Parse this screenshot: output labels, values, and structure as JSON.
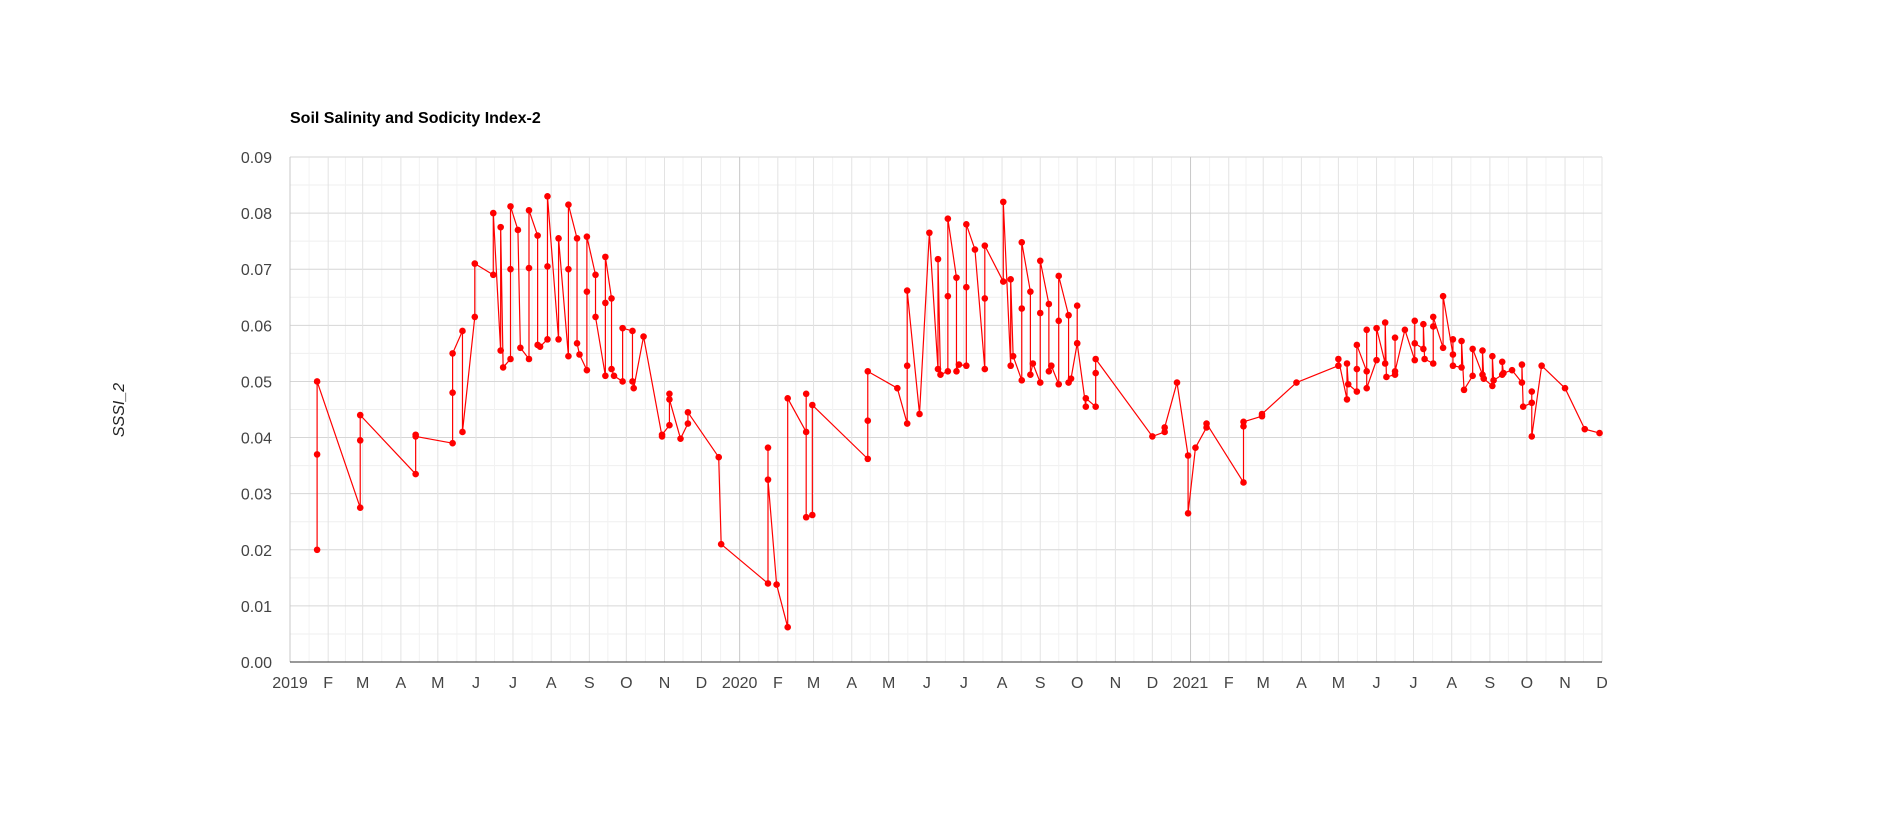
{
  "chart_data": {
    "type": "line",
    "title": "Soil Salinity and Sodicity Index-2",
    "xlabel": "",
    "ylabel": "SSSI_2",
    "ylim": [
      0,
      0.09
    ],
    "y_ticks": [
      "0.00",
      "0.01",
      "0.02",
      "0.03",
      "0.04",
      "0.05",
      "0.06",
      "0.07",
      "0.08",
      "0.09"
    ],
    "xlim": [
      "2019-01-01",
      "2021-12-01"
    ],
    "x_ticks": [
      {
        "date": "2019-01-01",
        "label": "2019"
      },
      {
        "date": "2019-02-01",
        "label": "F"
      },
      {
        "date": "2019-03-01",
        "label": "M"
      },
      {
        "date": "2019-04-01",
        "label": "A"
      },
      {
        "date": "2019-05-01",
        "label": "M"
      },
      {
        "date": "2019-06-01",
        "label": "J"
      },
      {
        "date": "2019-07-01",
        "label": "J"
      },
      {
        "date": "2019-08-01",
        "label": "A"
      },
      {
        "date": "2019-09-01",
        "label": "S"
      },
      {
        "date": "2019-10-01",
        "label": "O"
      },
      {
        "date": "2019-11-01",
        "label": "N"
      },
      {
        "date": "2019-12-01",
        "label": "D"
      },
      {
        "date": "2020-01-01",
        "label": "2020"
      },
      {
        "date": "2020-02-01",
        "label": "F"
      },
      {
        "date": "2020-03-01",
        "label": "M"
      },
      {
        "date": "2020-04-01",
        "label": "A"
      },
      {
        "date": "2020-05-01",
        "label": "M"
      },
      {
        "date": "2020-06-01",
        "label": "J"
      },
      {
        "date": "2020-07-01",
        "label": "J"
      },
      {
        "date": "2020-08-01",
        "label": "A"
      },
      {
        "date": "2020-09-01",
        "label": "S"
      },
      {
        "date": "2020-10-01",
        "label": "O"
      },
      {
        "date": "2020-11-01",
        "label": "N"
      },
      {
        "date": "2020-12-01",
        "label": "D"
      },
      {
        "date": "2021-01-01",
        "label": "2021"
      },
      {
        "date": "2021-02-01",
        "label": "F"
      },
      {
        "date": "2021-03-01",
        "label": "M"
      },
      {
        "date": "2021-04-01",
        "label": "A"
      },
      {
        "date": "2021-05-01",
        "label": "M"
      },
      {
        "date": "2021-06-01",
        "label": "J"
      },
      {
        "date": "2021-07-01",
        "label": "J"
      },
      {
        "date": "2021-08-01",
        "label": "A"
      },
      {
        "date": "2021-09-01",
        "label": "S"
      },
      {
        "date": "2021-10-01",
        "label": "O"
      },
      {
        "date": "2021-11-01",
        "label": "N"
      },
      {
        "date": "2021-12-01",
        "label": "D"
      }
    ],
    "grid": true,
    "legend": "none",
    "series": [
      {
        "color": "#ff0000",
        "points": [
          [
            "2019-01-23",
            0.037
          ],
          [
            "2019-01-23",
            0.02
          ],
          [
            "2019-01-23",
            0.05
          ],
          [
            "2019-02-27",
            0.0275
          ],
          [
            "2019-02-27",
            0.0395
          ],
          [
            "2019-02-27",
            0.044
          ],
          [
            "2019-04-13",
            0.0335
          ],
          [
            "2019-04-13",
            0.0405
          ],
          [
            "2019-04-13",
            0.0402
          ],
          [
            "2019-05-13",
            0.039
          ],
          [
            "2019-05-13",
            0.048
          ],
          [
            "2019-05-13",
            0.055
          ],
          [
            "2019-05-21",
            0.059
          ],
          [
            "2019-05-21",
            0.041
          ],
          [
            "2019-05-31",
            0.0615
          ],
          [
            "2019-05-31",
            0.071
          ],
          [
            "2019-06-15",
            0.069
          ],
          [
            "2019-06-15",
            0.08
          ],
          [
            "2019-06-21",
            0.0555
          ],
          [
            "2019-06-21",
            0.0775
          ],
          [
            "2019-06-23",
            0.0525
          ],
          [
            "2019-06-29",
            0.054
          ],
          [
            "2019-06-29",
            0.07
          ],
          [
            "2019-06-29",
            0.0812
          ],
          [
            "2019-07-05",
            0.077
          ],
          [
            "2019-07-07",
            0.056
          ],
          [
            "2019-07-14",
            0.054
          ],
          [
            "2019-07-14",
            0.0702
          ],
          [
            "2019-07-14",
            0.0805
          ],
          [
            "2019-07-21",
            0.076
          ],
          [
            "2019-07-21",
            0.0565
          ],
          [
            "2019-07-23",
            0.0562
          ],
          [
            "2019-07-29",
            0.0575
          ],
          [
            "2019-07-29",
            0.0705
          ],
          [
            "2019-07-29",
            0.083
          ],
          [
            "2019-08-07",
            0.0575
          ],
          [
            "2019-08-07",
            0.0755
          ],
          [
            "2019-08-15",
            0.0545
          ],
          [
            "2019-08-15",
            0.07
          ],
          [
            "2019-08-15",
            0.0815
          ],
          [
            "2019-08-22",
            0.0755
          ],
          [
            "2019-08-22",
            0.0568
          ],
          [
            "2019-08-24",
            0.0548
          ],
          [
            "2019-08-30",
            0.052
          ],
          [
            "2019-08-30",
            0.066
          ],
          [
            "2019-08-30",
            0.0758
          ],
          [
            "2019-09-06",
            0.069
          ],
          [
            "2019-09-06",
            0.0615
          ],
          [
            "2019-09-14",
            0.051
          ],
          [
            "2019-09-14",
            0.064
          ],
          [
            "2019-09-14",
            0.0722
          ],
          [
            "2019-09-19",
            0.0648
          ],
          [
            "2019-09-19",
            0.0522
          ],
          [
            "2019-09-21",
            0.051
          ],
          [
            "2019-09-28",
            0.05
          ],
          [
            "2019-09-28",
            0.0595
          ],
          [
            "2019-10-06",
            0.059
          ],
          [
            "2019-10-06",
            0.05
          ],
          [
            "2019-10-07",
            0.0488
          ],
          [
            "2019-10-15",
            0.058
          ],
          [
            "2019-10-30",
            0.0402
          ],
          [
            "2019-10-30",
            0.0405
          ],
          [
            "2019-11-05",
            0.0422
          ],
          [
            "2019-11-05",
            0.0478
          ],
          [
            "2019-11-05",
            0.0468
          ],
          [
            "2019-11-14",
            0.0398
          ],
          [
            "2019-11-20",
            0.0425
          ],
          [
            "2019-11-20",
            0.0445
          ],
          [
            "2019-12-15",
            0.0365
          ],
          [
            "2019-12-17",
            0.021
          ],
          [
            "2020-01-24",
            0.014
          ],
          [
            "2020-01-24",
            0.0382
          ],
          [
            "2020-01-24",
            0.0325
          ],
          [
            "2020-01-31",
            0.0138
          ],
          [
            "2020-02-09",
            0.0062
          ],
          [
            "2020-02-09",
            0.047
          ],
          [
            "2020-02-24",
            0.041
          ],
          [
            "2020-02-24",
            0.0478
          ],
          [
            "2020-02-24",
            0.0258
          ],
          [
            "2020-02-29",
            0.0262
          ],
          [
            "2020-02-29",
            0.0458
          ],
          [
            "2020-04-14",
            0.0362
          ],
          [
            "2020-04-14",
            0.043
          ],
          [
            "2020-04-14",
            0.0518
          ],
          [
            "2020-05-08",
            0.0488
          ],
          [
            "2020-05-16",
            0.0425
          ],
          [
            "2020-05-16",
            0.0528
          ],
          [
            "2020-05-16",
            0.0662
          ],
          [
            "2020-05-26",
            0.0442
          ],
          [
            "2020-06-03",
            0.0765
          ],
          [
            "2020-06-10",
            0.0522
          ],
          [
            "2020-06-10",
            0.0718
          ],
          [
            "2020-06-12",
            0.0512
          ],
          [
            "2020-06-18",
            0.0518
          ],
          [
            "2020-06-18",
            0.0652
          ],
          [
            "2020-06-18",
            0.079
          ],
          [
            "2020-06-25",
            0.0685
          ],
          [
            "2020-06-25",
            0.0518
          ],
          [
            "2020-06-27",
            0.053
          ],
          [
            "2020-07-03",
            0.0528
          ],
          [
            "2020-07-03",
            0.0668
          ],
          [
            "2020-07-03",
            0.078
          ],
          [
            "2020-07-10",
            0.0735
          ],
          [
            "2020-07-18",
            0.0522
          ],
          [
            "2020-07-18",
            0.0648
          ],
          [
            "2020-07-18",
            0.0742
          ],
          [
            "2020-08-02",
            0.0678
          ],
          [
            "2020-08-02",
            0.082
          ],
          [
            "2020-08-08",
            0.0528
          ],
          [
            "2020-08-08",
            0.0682
          ],
          [
            "2020-08-10",
            0.0545
          ],
          [
            "2020-08-17",
            0.0502
          ],
          [
            "2020-08-17",
            0.063
          ],
          [
            "2020-08-17",
            0.0748
          ],
          [
            "2020-08-24",
            0.066
          ],
          [
            "2020-08-24",
            0.0512
          ],
          [
            "2020-08-26",
            0.0532
          ],
          [
            "2020-09-01",
            0.0498
          ],
          [
            "2020-09-01",
            0.0622
          ],
          [
            "2020-09-01",
            0.0715
          ],
          [
            "2020-09-08",
            0.0638
          ],
          [
            "2020-09-08",
            0.0518
          ],
          [
            "2020-09-10",
            0.0528
          ],
          [
            "2020-09-16",
            0.0495
          ],
          [
            "2020-09-16",
            0.0608
          ],
          [
            "2020-09-16",
            0.0688
          ],
          [
            "2020-09-24",
            0.0618
          ],
          [
            "2020-09-24",
            0.0498
          ],
          [
            "2020-09-26",
            0.0505
          ],
          [
            "2020-10-01",
            0.0568
          ],
          [
            "2020-10-01",
            0.0635
          ],
          [
            "2020-10-01",
            0.0568
          ],
          [
            "2020-10-08",
            0.0455
          ],
          [
            "2020-10-08",
            0.047
          ],
          [
            "2020-10-16",
            0.0455
          ],
          [
            "2020-10-16",
            0.0515
          ],
          [
            "2020-10-16",
            0.054
          ],
          [
            "2020-12-01",
            0.0402
          ],
          [
            "2020-12-11",
            0.041
          ],
          [
            "2020-12-11",
            0.0418
          ],
          [
            "2020-12-21",
            0.0498
          ],
          [
            "2020-12-30",
            0.0368
          ],
          [
            "2020-12-30",
            0.0265
          ],
          [
            "2021-01-05",
            0.0382
          ],
          [
            "2021-01-14",
            0.0418
          ],
          [
            "2021-01-14",
            0.0425
          ],
          [
            "2021-02-13",
            0.032
          ],
          [
            "2021-02-13",
            0.042
          ],
          [
            "2021-02-13",
            0.0428
          ],
          [
            "2021-02-28",
            0.0438
          ],
          [
            "2021-02-28",
            0.0442
          ],
          [
            "2021-03-28",
            0.0498
          ],
          [
            "2021-05-01",
            0.0528
          ],
          [
            "2021-05-01",
            0.054
          ],
          [
            "2021-05-08",
            0.0468
          ],
          [
            "2021-05-08",
            0.0532
          ],
          [
            "2021-05-09",
            0.0495
          ],
          [
            "2021-05-16",
            0.0482
          ],
          [
            "2021-05-16",
            0.0522
          ],
          [
            "2021-05-16",
            0.0565
          ],
          [
            "2021-05-24",
            0.0518
          ],
          [
            "2021-05-24",
            0.0592
          ],
          [
            "2021-05-24",
            0.0488
          ],
          [
            "2021-06-01",
            0.0538
          ],
          [
            "2021-06-01",
            0.0595
          ],
          [
            "2021-06-08",
            0.0532
          ],
          [
            "2021-06-08",
            0.0605
          ],
          [
            "2021-06-09",
            0.0508
          ],
          [
            "2021-06-16",
            0.0512
          ],
          [
            "2021-06-16",
            0.0578
          ],
          [
            "2021-06-16",
            0.0518
          ],
          [
            "2021-06-24",
            0.0592
          ],
          [
            "2021-07-02",
            0.0538
          ],
          [
            "2021-07-02",
            0.0608
          ],
          [
            "2021-07-02",
            0.0568
          ],
          [
            "2021-07-09",
            0.0558
          ],
          [
            "2021-07-09",
            0.0602
          ],
          [
            "2021-07-10",
            0.054
          ],
          [
            "2021-07-17",
            0.0532
          ],
          [
            "2021-07-17",
            0.0598
          ],
          [
            "2021-07-17",
            0.0615
          ],
          [
            "2021-07-25",
            0.056
          ],
          [
            "2021-07-25",
            0.0652
          ],
          [
            "2021-08-02",
            0.0548
          ],
          [
            "2021-08-02",
            0.0575
          ],
          [
            "2021-08-02",
            0.0528
          ],
          [
            "2021-08-09",
            0.0525
          ],
          [
            "2021-08-09",
            0.0572
          ],
          [
            "2021-08-11",
            0.0485
          ],
          [
            "2021-08-18",
            0.051
          ],
          [
            "2021-08-18",
            0.0558
          ],
          [
            "2021-08-26",
            0.0512
          ],
          [
            "2021-08-26",
            0.0555
          ],
          [
            "2021-08-27",
            0.0505
          ],
          [
            "2021-09-03",
            0.0492
          ],
          [
            "2021-09-03",
            0.0545
          ],
          [
            "2021-09-04",
            0.0502
          ],
          [
            "2021-09-11",
            0.0512
          ],
          [
            "2021-09-11",
            0.0535
          ],
          [
            "2021-09-12",
            0.0515
          ],
          [
            "2021-09-19",
            0.052
          ],
          [
            "2021-09-27",
            0.0498
          ],
          [
            "2021-09-27",
            0.053
          ],
          [
            "2021-09-28",
            0.0455
          ],
          [
            "2021-10-05",
            0.0462
          ],
          [
            "2021-10-05",
            0.0482
          ],
          [
            "2021-10-05",
            0.0402
          ],
          [
            "2021-10-13",
            0.0528
          ],
          [
            "2021-11-01",
            0.0488
          ],
          [
            "2021-11-17",
            0.0415
          ],
          [
            "2021-11-29",
            0.0408
          ]
        ]
      }
    ]
  }
}
